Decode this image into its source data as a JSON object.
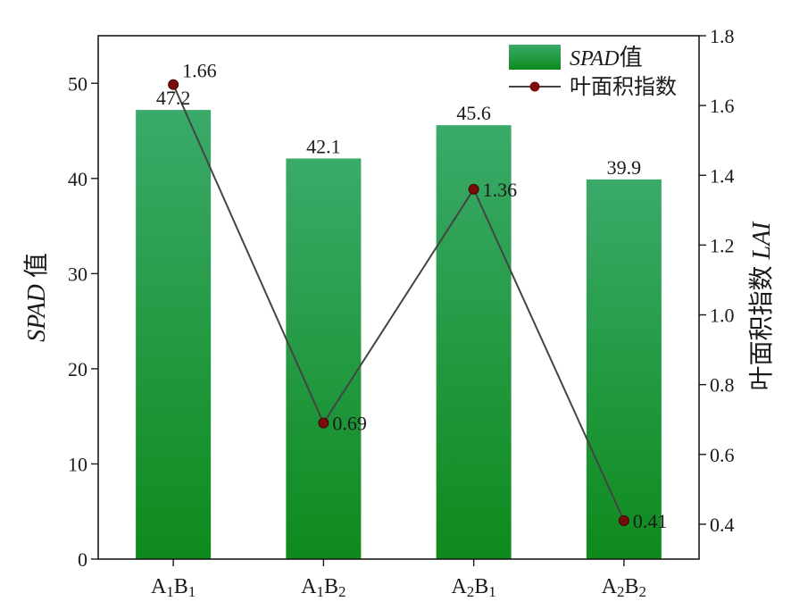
{
  "chart_data": {
    "type": "bar+line",
    "categories": [
      "A1B1",
      "A1B2",
      "A2B1",
      "A2B2"
    ],
    "category_labels": [
      {
        "a": "A",
        "a_sub": "1",
        "b": "B",
        "b_sub": "1"
      },
      {
        "a": "A",
        "a_sub": "1",
        "b": "B",
        "b_sub": "2"
      },
      {
        "a": "A",
        "a_sub": "2",
        "b": "B",
        "b_sub": "1"
      },
      {
        "a": "A",
        "a_sub": "2",
        "b": "B",
        "b_sub": "2"
      }
    ],
    "series": [
      {
        "name": "SPAD值",
        "name_italic": "SPAD",
        "name_rest": "值",
        "kind": "bar",
        "axis": "left",
        "values": [
          47.2,
          42.1,
          45.6,
          39.9
        ],
        "labels": [
          "47.2",
          "42.1",
          "45.6",
          "39.9"
        ],
        "color_top": "#3aaa6a",
        "color_bottom": "#0e8a1c"
      },
      {
        "name": "叶面积指数",
        "kind": "line",
        "axis": "right",
        "values": [
          1.66,
          0.69,
          1.36,
          0.41
        ],
        "labels": [
          "1.66",
          "0.69",
          "1.36",
          "0.41"
        ],
        "line_color": "#444444",
        "marker_color": "#7a0c0c"
      }
    ],
    "y_left": {
      "label_italic": "SPAD",
      "label_rest": " 值",
      "ylim": [
        0,
        55
      ],
      "ticks": [
        0,
        10,
        20,
        30,
        40,
        50
      ],
      "tick_labels": [
        "0",
        "10",
        "20",
        "30",
        "40",
        "50"
      ]
    },
    "y_right": {
      "label_rest": "叶面积指数 ",
      "label_italic": "LAI",
      "ylim": [
        0.3,
        1.8
      ],
      "ticks": [
        0.4,
        0.6,
        0.8,
        1.0,
        1.2,
        1.4,
        1.6,
        1.8
      ],
      "tick_labels": [
        "0.4",
        "0.6",
        "0.8",
        "1.0",
        "1.2",
        "1.4",
        "1.6",
        "1.8"
      ]
    },
    "legend_position": "top-right",
    "grid": false
  }
}
